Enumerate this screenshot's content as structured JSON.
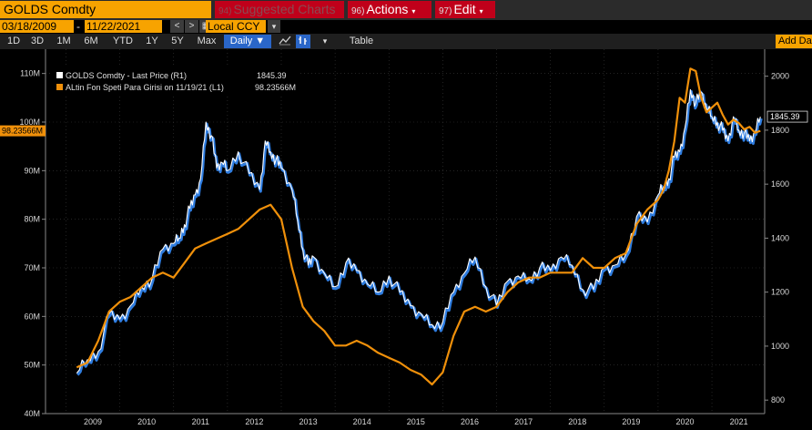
{
  "toolbar": {
    "ticker": "GOLDS Comdty",
    "suggested_num": "94)",
    "suggested_label": "Suggested Charts",
    "actions_num": "96)",
    "actions_label": "Actions",
    "edit_num": "97)",
    "edit_label": "Edit",
    "caret": "▾"
  },
  "daterow": {
    "start_date": "03/18/2009",
    "sep": "-",
    "end_date": "11/22/2021",
    "prev": "<",
    "next": ">",
    "calendar": "▦",
    "currency": "Local CCY",
    "currency_caret": "▾"
  },
  "periods": [
    "1D",
    "3D",
    "1M",
    "6M",
    "YTD",
    "1Y",
    "5Y",
    "Max"
  ],
  "frequency": "Daily ▼",
  "table_label": "Table",
  "add_data_label": "Add Da",
  "colors": {
    "gold_line": "#ffffff",
    "gold_shadow": "#2f7de0",
    "fund_line": "#f0900a",
    "axis_text": "#d8d8d8",
    "grid": "#3a3a3a"
  },
  "chart_data": {
    "type": "line",
    "legend": [
      {
        "name": "GOLDS Comdty - Last Price (R1)",
        "last": "1845.39",
        "color": "#ffffff"
      },
      {
        "name": "ALtin Fon Speti Para Girisi on 11/19/21 (L1)",
        "last": "98.23566M",
        "color": "#f0900a"
      }
    ],
    "left_axis_ticks": [
      "40M",
      "50M",
      "60M",
      "70M",
      "80M",
      "90M",
      "100M",
      "110M"
    ],
    "right_axis_ticks": [
      "800",
      "1000",
      "1200",
      "1400",
      "1600",
      "1800",
      "2000"
    ],
    "x_ticks": [
      "2009",
      "2010",
      "2011",
      "2012",
      "2013",
      "2014",
      "2015",
      "2016",
      "2017",
      "2018",
      "2019",
      "2020",
      "2021"
    ],
    "left_ylim": [
      40,
      115
    ],
    "right_ylim": [
      750,
      2100
    ],
    "left_last_label": "98.23566M",
    "right_last_label": "1845.39",
    "series": [
      {
        "name": "GOLDS Comdty - Last Price (R1)",
        "axis": "right",
        "x": [
          2009.2,
          2009.4,
          2009.6,
          2009.8,
          2010.0,
          2010.2,
          2010.4,
          2010.6,
          2010.8,
          2011.0,
          2011.1,
          2011.2,
          2011.3,
          2011.4,
          2011.5,
          2011.6,
          2011.7,
          2011.8,
          2011.9,
          2012.0,
          2012.2,
          2012.4,
          2012.6,
          2012.7,
          2012.8,
          2012.9,
          2013.0,
          2013.2,
          2013.3,
          2013.4,
          2013.5,
          2013.6,
          2013.8,
          2014.0,
          2014.2,
          2014.4,
          2014.6,
          2014.8,
          2015.0,
          2015.2,
          2015.4,
          2015.6,
          2015.8,
          2016.0,
          2016.2,
          2016.4,
          2016.6,
          2016.8,
          2017.0,
          2017.2,
          2017.4,
          2017.6,
          2017.8,
          2018.0,
          2018.2,
          2018.4,
          2018.6,
          2018.8,
          2019.0,
          2019.2,
          2019.4,
          2019.6,
          2019.8,
          2020.0,
          2020.1,
          2020.2,
          2020.3,
          2020.4,
          2020.5,
          2020.6,
          2020.7,
          2020.8,
          2020.9,
          2021.0,
          2021.1,
          2021.2,
          2021.3,
          2021.4,
          2021.5,
          2021.6,
          2021.7,
          2021.8,
          2021.9
        ],
        "values": [
          900,
          950,
          980,
          1120,
          1100,
          1150,
          1220,
          1250,
          1360,
          1380,
          1400,
          1450,
          1510,
          1560,
          1620,
          1830,
          1780,
          1660,
          1680,
          1650,
          1720,
          1640,
          1580,
          1760,
          1720,
          1690,
          1660,
          1580,
          1470,
          1360,
          1300,
          1330,
          1270,
          1220,
          1310,
          1280,
          1230,
          1200,
          1260,
          1200,
          1150,
          1120,
          1080,
          1090,
          1200,
          1270,
          1330,
          1220,
          1150,
          1240,
          1260,
          1250,
          1290,
          1280,
          1330,
          1300,
          1210,
          1210,
          1290,
          1300,
          1340,
          1480,
          1460,
          1560,
          1590,
          1620,
          1700,
          1720,
          1810,
          1950,
          1900,
          1940,
          1880,
          1850,
          1830,
          1800,
          1760,
          1850,
          1800,
          1790,
          1760,
          1790,
          1850
        ]
      },
      {
        "name": "ALtin Fon Speti Para Girisi on 11/19/21 (L1)",
        "axis": "left",
        "x": [
          2009.2,
          2009.4,
          2009.6,
          2009.8,
          2010.0,
          2010.2,
          2010.4,
          2010.6,
          2010.8,
          2011.0,
          2011.2,
          2011.4,
          2011.6,
          2011.8,
          2012.0,
          2012.2,
          2012.4,
          2012.6,
          2012.8,
          2013.0,
          2013.1,
          2013.2,
          2013.4,
          2013.6,
          2013.8,
          2014.0,
          2014.2,
          2014.4,
          2014.6,
          2014.8,
          2015.0,
          2015.2,
          2015.4,
          2015.6,
          2015.8,
          2016.0,
          2016.2,
          2016.4,
          2016.6,
          2016.8,
          2017.0,
          2017.2,
          2017.4,
          2017.6,
          2017.8,
          2018.0,
          2018.2,
          2018.4,
          2018.6,
          2018.8,
          2019.0,
          2019.2,
          2019.4,
          2019.6,
          2019.8,
          2020.0,
          2020.1,
          2020.2,
          2020.3,
          2020.4,
          2020.5,
          2020.6,
          2020.7,
          2020.8,
          2020.9,
          2021.0,
          2021.1,
          2021.2,
          2021.3,
          2021.4,
          2021.5,
          2021.6,
          2021.7,
          2021.8,
          2021.9
        ],
        "values": [
          49.5,
          50.5,
          55,
          61,
          63,
          64,
          66,
          68,
          69,
          68,
          71,
          74,
          75,
          76,
          77,
          78,
          80,
          82,
          83,
          80,
          75,
          70,
          62,
          59,
          57,
          54,
          54,
          55,
          54,
          52.5,
          51.5,
          50.5,
          49,
          48,
          46,
          48.5,
          56,
          61,
          62,
          61,
          62,
          65,
          67,
          68,
          68,
          69,
          69,
          69,
          72,
          70,
          70,
          72,
          73,
          79,
          82,
          84,
          86,
          90,
          96,
          105,
          104,
          111,
          110.5,
          105,
          102,
          103,
          104,
          101.5,
          99.5,
          100.5,
          99.8,
          98.5,
          99,
          97.8,
          98.2
        ]
      }
    ]
  }
}
